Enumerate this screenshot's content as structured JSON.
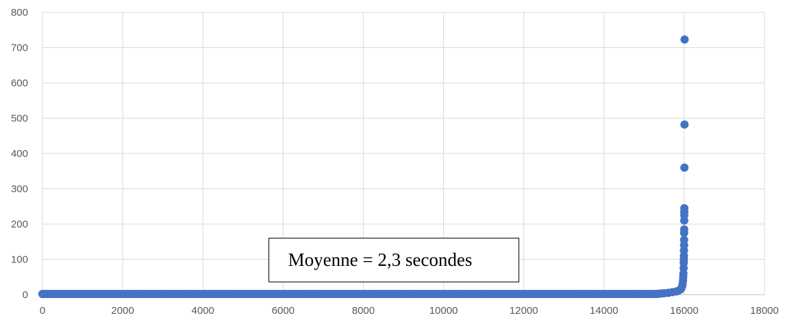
{
  "chart_data": {
    "type": "scatter",
    "title": "",
    "xlabel": "",
    "ylabel": "",
    "xlim": [
      0,
      18000
    ],
    "ylim": [
      0,
      800
    ],
    "x_ticks": [
      "0",
      "2000",
      "4000",
      "6000",
      "8000",
      "10000",
      "12000",
      "14000",
      "16000",
      "18000"
    ],
    "y_ticks": [
      "0",
      "100",
      "200",
      "300",
      "400",
      "500",
      "600",
      "700",
      "800"
    ],
    "grid": true,
    "legend": "none",
    "point_color": "#4472c4",
    "annotation": "Moyenne = 2,3 secondes",
    "series": [
      {
        "points": [
          [
            0,
            2
          ],
          [
            15300,
            2
          ],
          [
            15400,
            3
          ],
          [
            15500,
            4
          ],
          [
            15600,
            5
          ],
          [
            15700,
            7
          ],
          [
            15800,
            9
          ],
          [
            15850,
            11
          ],
          [
            15900,
            14
          ],
          [
            15930,
            18
          ],
          [
            15950,
            25
          ],
          [
            15960,
            30
          ],
          [
            15970,
            40
          ],
          [
            15975,
            50
          ],
          [
            15980,
            60
          ],
          [
            15985,
            75
          ],
          [
            15988,
            90
          ],
          [
            15990,
            100
          ],
          [
            15992,
            110
          ],
          [
            15994,
            125
          ],
          [
            15996,
            140
          ],
          [
            15997,
            155
          ],
          [
            15998,
            175
          ],
          [
            15999,
            185
          ],
          [
            16000,
            210
          ],
          [
            16001,
            225
          ],
          [
            16002,
            235
          ],
          [
            16003,
            245
          ],
          [
            16005,
            360
          ],
          [
            16007,
            482
          ],
          [
            16009,
            723
          ]
        ]
      }
    ]
  }
}
